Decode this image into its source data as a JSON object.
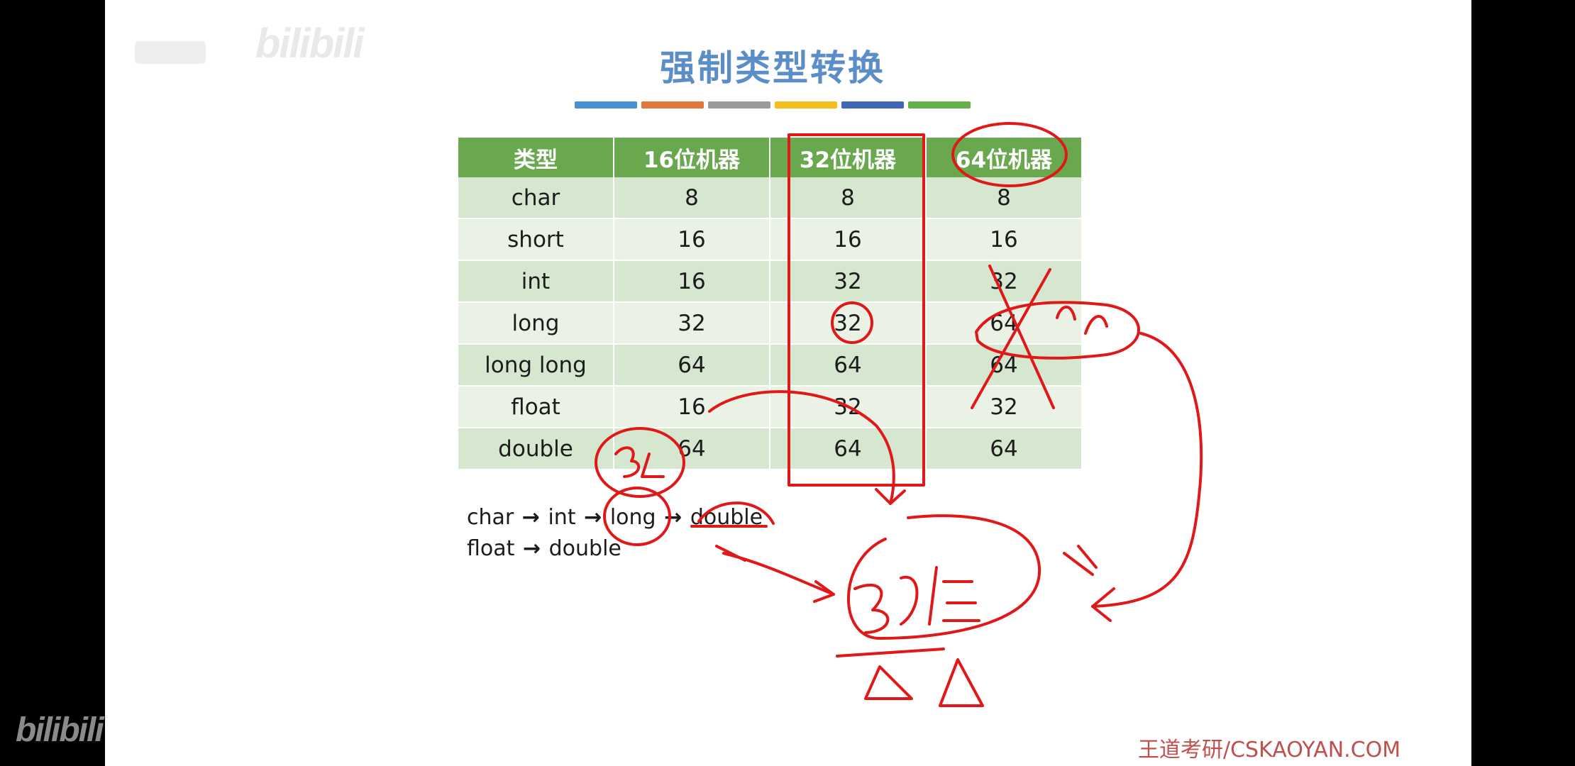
{
  "watermarks": {
    "top": "bilibili",
    "bottom": "bilibili"
  },
  "slide": {
    "title": "强制类型转换",
    "accent_colors": [
      "#4a8fd0",
      "#e0763a",
      "#9a9a9a",
      "#f2bf1d",
      "#3f68b7",
      "#66b04a"
    ],
    "table": {
      "headers": [
        "类型",
        "16位机器",
        "32位机器",
        "64位机器"
      ],
      "rows": [
        [
          "char",
          "8",
          "8",
          "8"
        ],
        [
          "short",
          "16",
          "16",
          "16"
        ],
        [
          "int",
          "16",
          "32",
          "32"
        ],
        [
          "long",
          "32",
          "32",
          "64"
        ],
        [
          "long long",
          "64",
          "64",
          "64"
        ],
        [
          "float",
          "16",
          "32",
          "32"
        ],
        [
          "double",
          "64",
          "64",
          "64"
        ]
      ]
    },
    "conversion": {
      "line1": [
        "char",
        "int",
        "long",
        "double"
      ],
      "line2": [
        "float",
        "double"
      ],
      "arrow": "→"
    },
    "brand": "王道考研/CSKAOYAN.COM"
  },
  "colors": {
    "header_green": "#6aa84f",
    "title_blue": "#5b8ec6",
    "ink_red": "#e01818"
  }
}
